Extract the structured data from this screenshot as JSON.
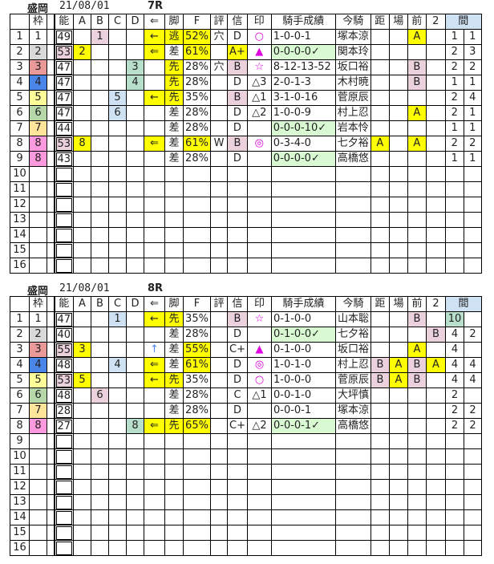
{
  "colors": {
    "yellow": "#ffff00",
    "pink": "#ead1dc",
    "lblue": "#cfe2f3",
    "teal": "#b7dfcc",
    "green": "#d9f9d3",
    "gray": "#d9d9d9",
    "red": "#ea9999",
    "blue": "#4a86e8",
    "lyellow": "#ffff99",
    "lgreen": "#b6d7a8",
    "orange": "#ffe599",
    "hpink": "#ff99dd",
    "hdr": "#cfe2f3"
  },
  "headers": [
    "",
    "枠",
    "",
    "能",
    "A",
    "B",
    "C",
    "D",
    "⇐",
    "脚",
    "F",
    "評",
    "信",
    "印",
    "騎手成績",
    "今騎",
    "距",
    "場",
    "前",
    "2",
    "間"
  ],
  "races": [
    {
      "venue": "盛岡",
      "date": "21/08/01",
      "race": "7R",
      "rows": [
        {
          "v": [
            "1",
            "1",
            "",
            "49",
            "",
            "1",
            "",
            "",
            "←",
            "逃",
            "52%",
            "穴",
            "D",
            "○",
            "1-0-0-1",
            "塚本涼",
            "",
            "",
            "A",
            "",
            "1",
            "1"
          ],
          "hl": {
            "5": "pink",
            "8": "yellow",
            "9": "yellow",
            "10": "yellow",
            "18": "yellow"
          },
          "mag": true
        },
        {
          "v": [
            "2",
            "2",
            "",
            "53",
            "2",
            "",
            "",
            "",
            "⇐",
            "差",
            "61%",
            "",
            "A+",
            "▲",
            "0-0-0-0✓",
            "関本玲",
            "",
            "",
            "",
            "",
            "2",
            "3"
          ],
          "hl": {
            "1": "gray",
            "3": "pink",
            "4": "yellow",
            "8": "yellow",
            "10": "yellow",
            "12": "yellow",
            "14": "green"
          },
          "mag": true
        },
        {
          "v": [
            "3",
            "3",
            "",
            "47",
            "",
            "",
            "",
            "3",
            "",
            "先",
            "28%",
            "穴",
            "B",
            "☆",
            "8-12-13-52",
            "坂口裕",
            "",
            "",
            "B",
            "",
            "2",
            "2"
          ],
          "hl": {
            "1": "red",
            "7": "teal",
            "9": "yellow",
            "12": "pink",
            "18": "pink"
          },
          "mag": true
        },
        {
          "v": [
            "4",
            "4",
            "",
            "47",
            "",
            "",
            "",
            "4",
            "",
            "先",
            "28%",
            "",
            "D",
            "△3",
            "2-0-1-3",
            "木村暁",
            "",
            "",
            "B",
            "",
            "1",
            "1"
          ],
          "hl": {
            "1": "blue",
            "7": "teal",
            "9": "yellow",
            "18": "pink"
          }
        },
        {
          "v": [
            "5",
            "5",
            "",
            "47",
            "",
            "",
            "5",
            "",
            "←",
            "先",
            "35%",
            "",
            "B",
            "△1",
            "3-1-0-16",
            "菅原辰",
            "",
            "",
            "",
            "",
            "2",
            "4"
          ],
          "hl": {
            "1": "lyellow",
            "6": "lblue",
            "8": "yellow",
            "9": "yellow",
            "12": "pink"
          }
        },
        {
          "v": [
            "6",
            "6",
            "",
            "47",
            "",
            "",
            "6",
            "",
            "",
            "差",
            "28%",
            "",
            "D",
            "△2",
            "1-0-0-9",
            "村上忍",
            "",
            "",
            "A",
            "",
            "2",
            "1"
          ],
          "hl": {
            "1": "lgreen",
            "6": "lblue",
            "18": "yellow"
          }
        },
        {
          "v": [
            "7",
            "7",
            "",
            "44",
            "",
            "",
            "",
            "",
            "",
            "差",
            "28%",
            "",
            "D",
            "",
            "0-0-0-10✓",
            "岩本怜",
            "",
            "",
            "",
            "",
            "1",
            "1"
          ],
          "hl": {
            "1": "orange",
            "14": "green"
          }
        },
        {
          "v": [
            "8",
            "8",
            "",
            "53",
            "8",
            "",
            "",
            "",
            "⇐",
            "差",
            "61%",
            "W",
            "B",
            "◎",
            "0-3-4-0",
            "七夕裕",
            "A",
            "",
            "A",
            "",
            "2",
            "2"
          ],
          "hl": {
            "1": "hpink",
            "3": "pink",
            "4": "yellow",
            "8": "yellow",
            "10": "yellow",
            "12": "pink",
            "16": "yellow",
            "18": "yellow"
          },
          "mag": true
        },
        {
          "v": [
            "9",
            "8",
            "",
            "43",
            "",
            "",
            "",
            "",
            "",
            "差",
            "28%",
            "",
            "D",
            "",
            "0-0-0-0✓",
            "高橋悠",
            "",
            "",
            "",
            "",
            "1",
            "1"
          ],
          "hl": {
            "1": "hpink",
            "14": "green"
          }
        },
        {
          "v": [
            "10"
          ]
        },
        {
          "v": [
            "11"
          ]
        },
        {
          "v": [
            "12"
          ]
        },
        {
          "v": [
            "13"
          ]
        },
        {
          "v": [
            "14"
          ]
        },
        {
          "v": [
            "15"
          ]
        },
        {
          "v": [
            "16"
          ]
        }
      ]
    },
    {
      "venue": "盛岡",
      "date": "21/08/01",
      "race": "8R",
      "rows": [
        {
          "v": [
            "1",
            "1",
            "",
            "47",
            "",
            "",
            "1",
            "",
            "←",
            "先",
            "35%",
            "",
            "B",
            "☆",
            "0-1-0-0",
            "山本聡",
            "",
            "",
            "B",
            "",
            "10",
            ""
          ],
          "hl": {
            "6": "lblue",
            "8": "yellow",
            "9": "yellow",
            "12": "pink",
            "18": "pink",
            "20": "teal"
          },
          "mag": true
        },
        {
          "v": [
            "2",
            "2",
            "",
            "40",
            "",
            "",
            "",
            "",
            "",
            "差",
            "28%",
            "",
            "D",
            "",
            "0-1-0-0✓",
            "七夕裕",
            "",
            "",
            "",
            "B",
            "4",
            "2"
          ],
          "hl": {
            "1": "gray",
            "14": "green",
            "19": "pink"
          }
        },
        {
          "v": [
            "3",
            "3",
            "",
            "55",
            "3",
            "",
            "",
            "",
            "↑",
            "差",
            "55%",
            "",
            "C+",
            "▲",
            "0-1-0-0",
            "坂口裕",
            "",
            "",
            "A",
            "",
            "4",
            ""
          ],
          "hl": {
            "1": "red",
            "3": "pink",
            "4": "yellow",
            "10": "yellow",
            "18": "yellow"
          },
          "mag": true,
          "up": true
        },
        {
          "v": [
            "4",
            "4",
            "",
            "48",
            "",
            "",
            "4",
            "",
            "⇐",
            "差",
            "61%",
            "",
            "D",
            "◎",
            "1-0-1-0",
            "村上忍",
            "B",
            "A",
            "B",
            "A",
            "4",
            "4"
          ],
          "hl": {
            "1": "blue",
            "6": "lblue",
            "8": "yellow",
            "10": "yellow",
            "16": "pink",
            "17": "yellow",
            "18": "pink",
            "19": "yellow"
          },
          "mag": true
        },
        {
          "v": [
            "5",
            "5",
            "",
            "53",
            "5",
            "",
            "",
            "",
            "←",
            "先",
            "35%",
            "",
            "D",
            "○",
            "1-0-0-0",
            "菅原辰",
            "B",
            "A",
            "B",
            "",
            "4",
            "4"
          ],
          "hl": {
            "1": "lyellow",
            "3": "pink",
            "4": "yellow",
            "8": "yellow",
            "9": "yellow",
            "16": "pink",
            "17": "yellow",
            "18": "pink"
          },
          "mag": true
        },
        {
          "v": [
            "6",
            "6",
            "",
            "48",
            "",
            "6",
            "",
            "",
            "",
            "差",
            "28%",
            "",
            "C",
            "△1",
            "0-0-1-0",
            "大坪慎",
            "",
            "",
            "",
            "",
            "2",
            ""
          ],
          "hl": {
            "1": "lgreen",
            "5": "pink"
          }
        },
        {
          "v": [
            "7",
            "7",
            "",
            "28",
            "",
            "",
            "",
            "",
            "",
            "差",
            "28%",
            "",
            "D",
            "",
            "0-0-0-1",
            "塚本涼",
            "",
            "",
            "",
            "",
            "2",
            "2"
          ],
          "hl": {
            "1": "orange"
          }
        },
        {
          "v": [
            "8",
            "8",
            "",
            "27",
            "",
            "",
            "",
            "8",
            "⇐",
            "先",
            "65%",
            "",
            "C+",
            "△2",
            "0-0-0-1✓",
            "高橋悠",
            "",
            "",
            "",
            "",
            "2",
            "2"
          ],
          "hl": {
            "1": "hpink",
            "7": "teal",
            "8": "yellow",
            "9": "yellow",
            "10": "yellow",
            "14": "green"
          }
        },
        {
          "v": [
            "9"
          ]
        },
        {
          "v": [
            "10"
          ]
        },
        {
          "v": [
            "11"
          ]
        },
        {
          "v": [
            "12"
          ]
        },
        {
          "v": [
            "13"
          ]
        },
        {
          "v": [
            "14"
          ]
        },
        {
          "v": [
            "15"
          ]
        },
        {
          "v": [
            "16"
          ]
        }
      ]
    }
  ]
}
